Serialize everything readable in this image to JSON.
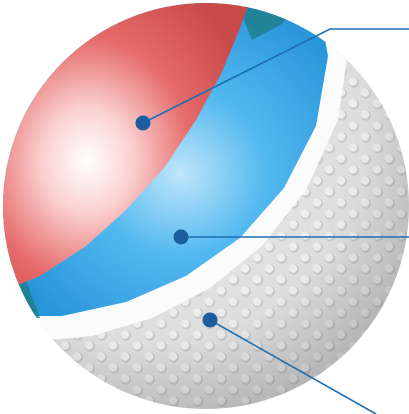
{
  "figure": {
    "subject": "golf-ball-cutaway",
    "layers": [
      {
        "id": "core",
        "color": "#e05a5a"
      },
      {
        "id": "mantle",
        "color": "#1e9be0"
      },
      {
        "id": "cover",
        "color": "#f2f2f2"
      }
    ],
    "callout_color": "#1d6fb3",
    "callout_count": 3
  }
}
